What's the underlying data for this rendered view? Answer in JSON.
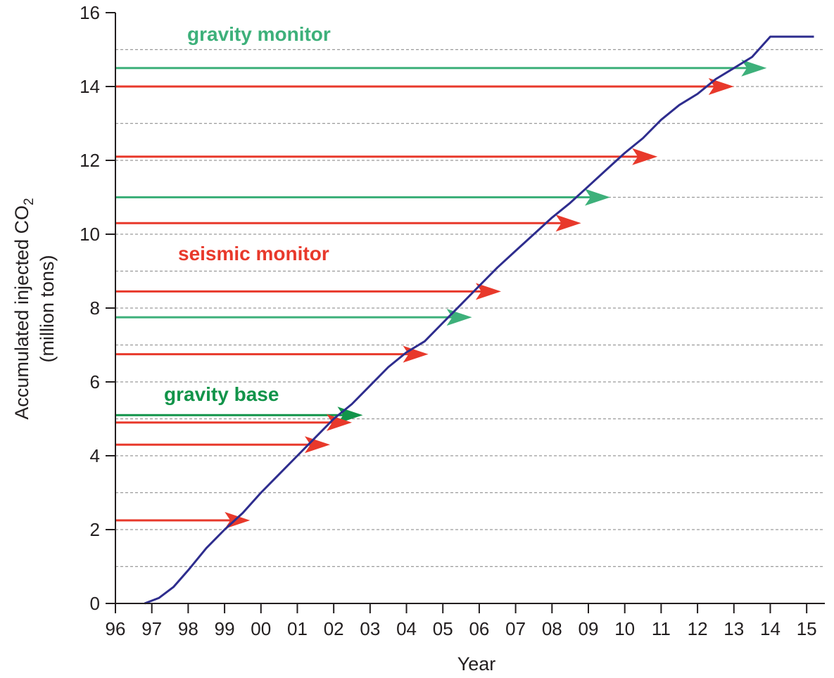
{
  "chart_data": {
    "type": "line",
    "xlabel": "Year",
    "ylabel": "Accumulated injected CO",
    "ylabel_subscript": "2",
    "ylabel_line2": "(million tons)",
    "x_tick_labels": [
      "96",
      "97",
      "98",
      "99",
      "00",
      "01",
      "02",
      "03",
      "04",
      "05",
      "06",
      "07",
      "08",
      "09",
      "10",
      "11",
      "12",
      "13",
      "14",
      "15"
    ],
    "y_tick_labels": [
      "0",
      "2",
      "4",
      "6",
      "8",
      "10",
      "12",
      "14",
      "16"
    ],
    "xlim": [
      1996,
      2015.5
    ],
    "ylim": [
      0,
      16
    ],
    "grid": "dashed horizontal lines every 1 million tons",
    "colors": {
      "curve": "#2e2d8e",
      "seismic": "#e8392b",
      "gravity_monitor": "#3db07a",
      "gravity_base": "#12944a",
      "grid": "#9a9a9a",
      "axis": "#231f20"
    },
    "series": [
      {
        "name": "",
        "x": [
          1996.8,
          1997.2,
          1997.6,
          1998.0,
          1998.5,
          1999.0,
          1999.5,
          2000.0,
          2000.5,
          2001.0,
          2001.5,
          2002.0,
          2002.5,
          2003.0,
          2003.5,
          2004.0,
          2004.5,
          2005.0,
          2005.5,
          2006.0,
          2006.5,
          2007.0,
          2007.5,
          2008.0,
          2008.5,
          2009.0,
          2009.5,
          2010.0,
          2010.5,
          2011.0,
          2011.5,
          2012.0,
          2012.5,
          2013.0,
          2013.5,
          2014.0,
          2014.5,
          2015.2
        ],
        "values": [
          0.0,
          0.15,
          0.45,
          0.9,
          1.5,
          2.0,
          2.45,
          3.0,
          3.5,
          4.0,
          4.5,
          5.0,
          5.4,
          5.9,
          6.4,
          6.8,
          7.1,
          7.6,
          8.1,
          8.6,
          9.1,
          9.55,
          10.0,
          10.45,
          10.85,
          11.3,
          11.75,
          12.2,
          12.6,
          13.1,
          13.5,
          13.8,
          14.2,
          14.5,
          14.8,
          15.35,
          15.35,
          15.35
        ]
      }
    ],
    "arrows": [
      {
        "kind": "gravity_monitor",
        "y": 14.5,
        "x_end": 2013.9
      },
      {
        "kind": "seismic",
        "y": 14.0,
        "x_end": 2013.0
      },
      {
        "kind": "seismic",
        "y": 12.1,
        "x_end": 2010.9
      },
      {
        "kind": "gravity_monitor",
        "y": 11.0,
        "x_end": 2009.6
      },
      {
        "kind": "seismic",
        "y": 10.3,
        "x_end": 2008.8
      },
      {
        "kind": "seismic",
        "y": 8.45,
        "x_end": 2006.6
      },
      {
        "kind": "gravity_monitor",
        "y": 7.75,
        "x_end": 2005.8
      },
      {
        "kind": "seismic",
        "y": 6.75,
        "x_end": 2004.6
      },
      {
        "kind": "gravity_base",
        "y": 5.1,
        "x_end": 2002.8
      },
      {
        "kind": "seismic",
        "y": 4.9,
        "x_end": 2002.5
      },
      {
        "kind": "seismic",
        "y": 4.3,
        "x_end": 2001.9
      },
      {
        "kind": "seismic",
        "y": 2.25,
        "x_end": 1999.7
      }
    ],
    "annotations": [
      {
        "text": "gravity monitor",
        "kind": "gravity_monitor"
      },
      {
        "text": "seismic monitor",
        "kind": "seismic"
      },
      {
        "text": "gravity base",
        "kind": "gravity_base"
      }
    ]
  }
}
